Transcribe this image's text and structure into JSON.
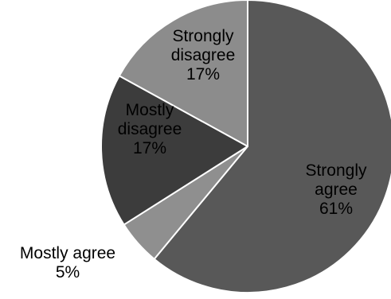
{
  "chart_data": {
    "type": "pie",
    "title": "",
    "legend": "none",
    "slices": [
      {
        "category": "Strongly agree",
        "value": 61,
        "label_lines": [
          "Strongly",
          "agree",
          "61%"
        ],
        "color": "#585858",
        "label_color": "#000000"
      },
      {
        "category": "Mostly agree",
        "value": 5,
        "label_lines": [
          "Mostly agree",
          "5%"
        ],
        "color": "#8f8f8f",
        "label_color": "#000000"
      },
      {
        "category": "Mostly disagree",
        "value": 17,
        "label_lines": [
          "Mostly",
          "disagree",
          "17%"
        ],
        "color": "#3c3c3c",
        "label_color": "#000000"
      },
      {
        "category": "Strongly disagree",
        "value": 17,
        "label_lines": [
          "Strongly",
          "disagree",
          "17%"
        ],
        "color": "#8c8c8c",
        "label_color": "#000000"
      }
    ]
  }
}
